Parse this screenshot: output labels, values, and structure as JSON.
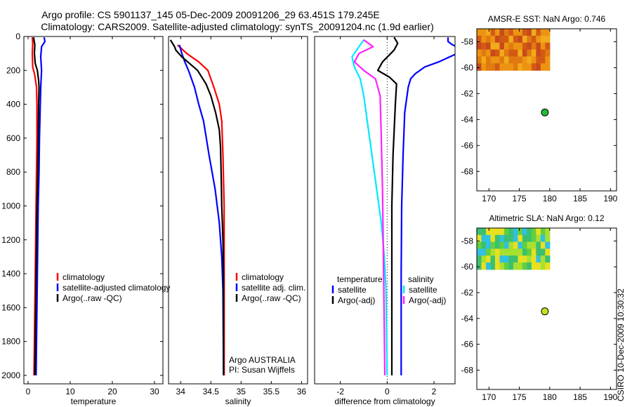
{
  "header": {
    "line1": "Argo profile: CS 5901137_145 05-Dec-2009 20091206_29 63.451S 179.245E",
    "line2": "Climatology: CARS2009. Satellite-adjusted climatology: synTS_20091204.nc (1.9d earlier)"
  },
  "side_stamp": "CSIRO 10-Dec-2009 10:30:32",
  "colors": {
    "climatology": "#ff0000",
    "satellite": "#0000ff",
    "argo": "#000000",
    "sat_diff": "#00e8ff",
    "argo_diff": "#ff22ff",
    "marker_sst": "#22bb33",
    "marker_sla": "#c8e020"
  },
  "chart_data": [
    {
      "id": "temperature",
      "type": "line",
      "xlabel": "temperature",
      "ylabel": "",
      "xlim": [
        -1,
        32
      ],
      "ylim": [
        2050,
        0
      ],
      "xticks": [
        "0",
        "10",
        "20",
        "30"
      ],
      "xtick_values": [
        0,
        10,
        20,
        30
      ],
      "yticks": [
        "0",
        "200",
        "400",
        "600",
        "800",
        "1000",
        "1200",
        "1400",
        "1600",
        "1800",
        "2000"
      ],
      "ytick_values": [
        0,
        200,
        400,
        600,
        800,
        1000,
        1200,
        1400,
        1600,
        1800,
        2000
      ],
      "series": [
        {
          "name": "climatology",
          "color_key": "climatology",
          "points": [
            [
              1.0,
              5
            ],
            [
              1.1,
              40
            ],
            [
              1.0,
              100
            ],
            [
              1.1,
              180
            ],
            [
              1.6,
              230
            ],
            [
              2.0,
              300
            ],
            [
              2.1,
              400
            ],
            [
              2.1,
              600
            ],
            [
              2.0,
              800
            ],
            [
              1.9,
              1000
            ],
            [
              1.7,
              1400
            ],
            [
              1.5,
              1800
            ],
            [
              1.4,
              2000
            ]
          ]
        },
        {
          "name": "satellite-adjusted climatology",
          "color_key": "satellite",
          "points": [
            [
              3.8,
              5
            ],
            [
              4.0,
              30
            ],
            [
              3.2,
              60
            ],
            [
              3.0,
              120
            ],
            [
              3.2,
              200
            ],
            [
              3.0,
              300
            ],
            [
              2.9,
              400
            ],
            [
              2.7,
              600
            ],
            [
              2.6,
              800
            ],
            [
              2.4,
              1000
            ],
            [
              2.2,
              1400
            ],
            [
              2.0,
              1800
            ],
            [
              1.9,
              2000
            ]
          ]
        },
        {
          "name": "Argo(..raw -QC)",
          "color_key": "argo",
          "points": [
            [
              1.3,
              5
            ],
            [
              1.6,
              50
            ],
            [
              1.5,
              100
            ],
            [
              1.7,
              160
            ],
            [
              2.2,
              200
            ],
            [
              2.5,
              260
            ],
            [
              2.6,
              300
            ],
            [
              2.5,
              400
            ],
            [
              2.4,
              600
            ],
            [
              2.3,
              800
            ],
            [
              2.1,
              1000
            ],
            [
              1.9,
              1400
            ],
            [
              1.7,
              1800
            ],
            [
              1.6,
              2000
            ]
          ]
        }
      ],
      "legend": {
        "entries": [
          "climatology",
          "satellite-adjusted climatology",
          "Argo(..raw -QC)"
        ]
      }
    },
    {
      "id": "salinity",
      "type": "line",
      "xlabel": "salinity",
      "ylabel": "",
      "xlim": [
        33.8,
        36.1
      ],
      "ylim": [
        2050,
        0
      ],
      "xticks": [
        "34",
        "34.5",
        "35",
        "35.5",
        "36"
      ],
      "xtick_values": [
        34,
        34.5,
        35,
        35.5,
        36
      ],
      "yticks": [],
      "series": [
        {
          "name": "climatology",
          "color_key": "climatology",
          "points": [
            [
              33.95,
              50
            ],
            [
              34.1,
              100
            ],
            [
              34.3,
              150
            ],
            [
              34.45,
              200
            ],
            [
              34.55,
              300
            ],
            [
              34.64,
              400
            ],
            [
              34.68,
              500
            ],
            [
              34.7,
              700
            ],
            [
              34.72,
              1000
            ],
            [
              34.72,
              1400
            ],
            [
              34.72,
              2000
            ]
          ]
        },
        {
          "name": "satellite adj. clim.",
          "color_key": "satellite",
          "points": [
            [
              33.98,
              50
            ],
            [
              34.02,
              100
            ],
            [
              34.07,
              150
            ],
            [
              34.13,
              200
            ],
            [
              34.23,
              300
            ],
            [
              34.3,
              400
            ],
            [
              34.38,
              500
            ],
            [
              34.47,
              700
            ],
            [
              34.57,
              900
            ],
            [
              34.64,
              1100
            ],
            [
              34.68,
              1300
            ],
            [
              34.7,
              1500
            ],
            [
              34.71,
              2000
            ]
          ]
        },
        {
          "name": "Argo(..raw -QC)",
          "color_key": "argo",
          "points": [
            [
              33.83,
              20
            ],
            [
              33.9,
              60
            ],
            [
              33.92,
              80
            ],
            [
              34.02,
              120
            ],
            [
              34.15,
              160
            ],
            [
              34.28,
              200
            ],
            [
              34.42,
              280
            ],
            [
              34.5,
              350
            ],
            [
              34.58,
              450
            ],
            [
              34.64,
              550
            ],
            [
              34.66,
              650
            ],
            [
              34.67,
              800
            ],
            [
              34.68,
              1000
            ],
            [
              34.7,
              1200
            ],
            [
              34.71,
              1400
            ],
            [
              34.71,
              2000
            ]
          ]
        }
      ],
      "legend": {
        "entries": [
          "climatology",
          "satellite adj. clim.",
          "Argo(..raw -QC)"
        ]
      },
      "annotations": [
        "Argo AUSTRALIA",
        "PI: Susan Wijffels"
      ]
    },
    {
      "id": "difference",
      "type": "line",
      "xlabel": "difference from climatology",
      "ylabel": "",
      "xlim": [
        -3.1,
        2.9
      ],
      "ylim": [
        2050,
        0
      ],
      "xticks": [
        "-2",
        "0",
        "2"
      ],
      "xtick_values": [
        -2,
        0,
        2
      ],
      "yticks": [],
      "zero_line": true,
      "series": [
        {
          "name": "temperature satellite",
          "color_key": "satellite",
          "points": [
            [
              2.6,
              5
            ],
            [
              2.6,
              30
            ],
            [
              2.8,
              50
            ],
            [
              3.0,
              60
            ]
          ]
        },
        {
          "name": "temperature satellite (lower)",
          "color_key": "satellite",
          "points": [
            [
              3.0,
              100
            ],
            [
              2.2,
              150
            ],
            [
              1.6,
              180
            ],
            [
              1.2,
              220
            ],
            [
              1.0,
              250
            ],
            [
              0.9,
              300
            ],
            [
              0.75,
              450
            ],
            [
              0.68,
              700
            ],
            [
              0.62,
              1000
            ],
            [
              0.6,
              1400
            ],
            [
              0.6,
              2000
            ]
          ]
        },
        {
          "name": "temperature Argo(-adj)",
          "color_key": "argo",
          "points": [
            [
              0.3,
              5
            ],
            [
              0.45,
              40
            ],
            [
              0.3,
              80
            ],
            [
              -0.2,
              150
            ],
            [
              -0.4,
              200
            ],
            [
              0.1,
              240
            ],
            [
              0.4,
              280
            ],
            [
              0.35,
              400
            ],
            [
              0.25,
              700
            ],
            [
              0.2,
              1000
            ],
            [
              0.2,
              1400
            ],
            [
              0.2,
              2000
            ]
          ]
        },
        {
          "name": "salinity satellite",
          "color_key": "sat_diff",
          "points": [
            [
              -1.0,
              20
            ],
            [
              -1.3,
              80
            ],
            [
              -1.5,
              120
            ],
            [
              -1.4,
              180
            ],
            [
              -1.15,
              250
            ],
            [
              -1.0,
              350
            ],
            [
              -0.85,
              500
            ],
            [
              -0.65,
              700
            ],
            [
              -0.45,
              900
            ],
            [
              -0.25,
              1100
            ],
            [
              -0.12,
              1300
            ],
            [
              -0.05,
              1500
            ],
            [
              0,
              2000
            ]
          ]
        },
        {
          "name": "salinity Argo(-adj)",
          "color_key": "argo_diff",
          "points": [
            [
              -1.0,
              20
            ],
            [
              -0.6,
              60
            ],
            [
              -1.2,
              100
            ],
            [
              -1.4,
              150
            ],
            [
              -1.0,
              200
            ],
            [
              -0.5,
              250
            ],
            [
              -0.3,
              350
            ],
            [
              -0.25,
              600
            ],
            [
              -0.2,
              900
            ],
            [
              -0.15,
              1400
            ],
            [
              -0.1,
              2000
            ]
          ]
        }
      ],
      "legend": {
        "headers": [
          "temperature",
          "salinity"
        ],
        "temperature_entries": [
          "satellite",
          "Argo(-adj)"
        ],
        "salinity_entries": [
          "satellite",
          "Argo(-adj)"
        ]
      }
    },
    {
      "id": "sst_map",
      "type": "heatmap",
      "title": "AMSR-E SST: NaN Argo: 0.746",
      "xlim": [
        168,
        191
      ],
      "ylim": [
        -69.5,
        -57
      ],
      "xticks": [
        "170",
        "175",
        "180",
        "185",
        "190"
      ],
      "xtick_values": [
        170,
        175,
        180,
        185,
        190
      ],
      "yticks": [
        "-58",
        "-60",
        "-62",
        "-64",
        "-66",
        "-68"
      ],
      "ytick_values": [
        -58,
        -60,
        -62,
        -64,
        -66,
        -68
      ],
      "patch_extent": {
        "lon": [
          168,
          180
        ],
        "lat": [
          -60.2,
          -57
        ]
      },
      "palette": [
        "#c84a1c",
        "#d45a14",
        "#e07a10",
        "#ec9412",
        "#f2aa1a"
      ],
      "marker": {
        "lon": 179.2,
        "lat": -63.45,
        "color_key": "marker_sst"
      }
    },
    {
      "id": "sla_map",
      "type": "heatmap",
      "title": "Altimetric SLA: NaN Argo: 0.12",
      "xlim": [
        168,
        191
      ],
      "ylim": [
        -69.5,
        -57
      ],
      "xticks": [
        "170",
        "175",
        "180",
        "185",
        "190"
      ],
      "xtick_values": [
        170,
        175,
        180,
        185,
        190
      ],
      "yticks": [
        "-58",
        "-60",
        "-62",
        "-64",
        "-66",
        "-68"
      ],
      "ytick_values": [
        -58,
        -60,
        -62,
        -64,
        -66,
        -68
      ],
      "patch_extent": {
        "lon": [
          168,
          180
        ],
        "lat": [
          -60.2,
          -57
        ]
      },
      "palette": [
        "#30c0e0",
        "#3ac070",
        "#60d040",
        "#a8e030",
        "#e8e020"
      ],
      "marker": {
        "lon": 179.2,
        "lat": -63.45,
        "color_key": "marker_sla"
      }
    }
  ]
}
